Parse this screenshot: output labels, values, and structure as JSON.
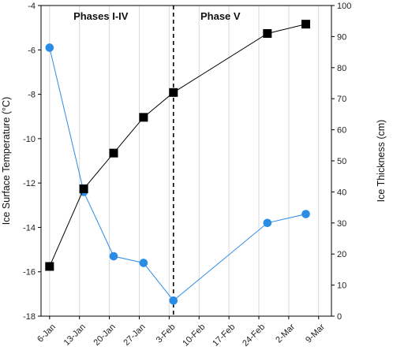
{
  "chart_data": {
    "type": "line",
    "x_tick_labels": [
      "6-Jan",
      "13-Jan",
      "20-Jan",
      "27-Jan",
      "3-Feb",
      "10-Feb",
      "17-Feb",
      "24-Feb",
      "2-Mar",
      "9-Mar"
    ],
    "x_tick_dates": [
      "2000-01-06",
      "2000-01-13",
      "2000-01-20",
      "2000-01-27",
      "2000-02-03",
      "2000-02-10",
      "2000-02-17",
      "2000-02-24",
      "2000-03-02",
      "2000-03-09"
    ],
    "xlim": [
      "2000-01-04",
      "2000-03-12"
    ],
    "ylabel": "Ice Surface Temperature (°C)",
    "ylim": [
      -18,
      -4
    ],
    "y_ticks": [
      -18,
      -16,
      -14,
      -12,
      -10,
      -8,
      -6,
      -4
    ],
    "y2label": "Ice Thickness (cm)",
    "y2lim": [
      0,
      100
    ],
    "y2_ticks": [
      0,
      10,
      20,
      30,
      40,
      50,
      60,
      70,
      80,
      90,
      100
    ],
    "grid": "vertical",
    "series": [
      {
        "axis": "left",
        "color": "#2b8ce6",
        "marker": "circle",
        "points": [
          {
            "x": "2000-01-06",
            "y": -5.9
          },
          {
            "x": "2000-01-14",
            "y": -12.4
          },
          {
            "x": "2000-01-21",
            "y": -15.3
          },
          {
            "x": "2000-01-28",
            "y": -15.6
          },
          {
            "x": "2000-02-04",
            "y": -17.3
          },
          {
            "x": "2000-02-26",
            "y": -13.8
          },
          {
            "x": "2000-03-06",
            "y": -13.4
          }
        ]
      },
      {
        "axis": "right",
        "color": "#000000",
        "marker": "square",
        "points": [
          {
            "x": "2000-01-06",
            "y": 16
          },
          {
            "x": "2000-01-14",
            "y": 41
          },
          {
            "x": "2000-01-21",
            "y": 52.5
          },
          {
            "x": "2000-01-28",
            "y": 64
          },
          {
            "x": "2000-02-04",
            "y": 72
          },
          {
            "x": "2000-02-26",
            "y": 91
          },
          {
            "x": "2000-03-06",
            "y": 94
          }
        ]
      }
    ],
    "annotations": [
      {
        "text": "Phases I-IV",
        "x": "2000-01-18",
        "y": -4.5
      },
      {
        "text": "Phase V",
        "x": "2000-02-15",
        "y": -4.5
      }
    ],
    "vline": {
      "x": "2000-02-04",
      "style": "dashed",
      "color": "#000000"
    }
  }
}
